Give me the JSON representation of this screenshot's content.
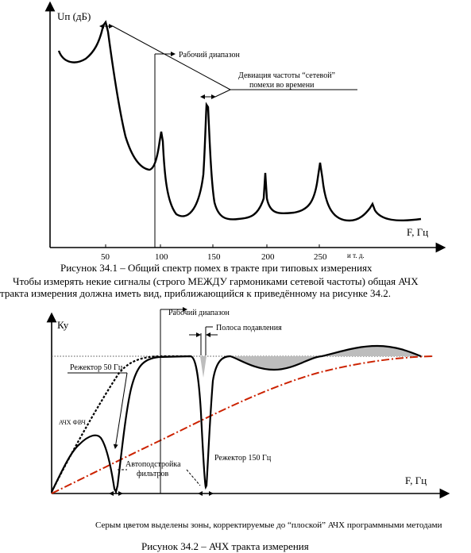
{
  "figure1": {
    "ylabel": "Uп (дБ)",
    "xlabel": "F, Гц",
    "xticks": [
      "50",
      "100",
      "150",
      "200",
      "250",
      "и т. д."
    ],
    "annotation_range": "Рабочий диапазон",
    "annotation_deviation_line1": "Девиация частоты “сетевой”",
    "annotation_deviation_line2": "помехи во времени",
    "caption": "Рисунок 34.1 – Общий спектр помех в тракте при типовых измерениях"
  },
  "paragraph": {
    "line1": "Чтобы измерять некие сигналы (строго МЕЖДУ гармониками сетевой частоты) общая АЧХ",
    "line2": "тракта измерения должна иметь вид, приближающийся к приведённому на рисунке 34.2."
  },
  "figure2": {
    "ylabel": "Ку",
    "xlabel": "F, Гц",
    "label_range": "Рабочий диапазон",
    "label_stopband": "Полоса подавления",
    "label_rejector50": "Режектор 50 Гц",
    "label_hpf": "АЧХ ФВЧ",
    "label_autotune_line1": "Автоподстройка",
    "label_autotune_line2": "фильтров",
    "label_rejector150": "Режектор 150 Гц",
    "note": "Серым цветом выделены зоны, корректируемые до “плоской” АЧХ программными методами",
    "caption": "Рисунок 34.2 – АЧХ тракта измерения"
  },
  "colors": {
    "red_curve": "#cc2200",
    "gray_fill": "#bdbdbd"
  }
}
